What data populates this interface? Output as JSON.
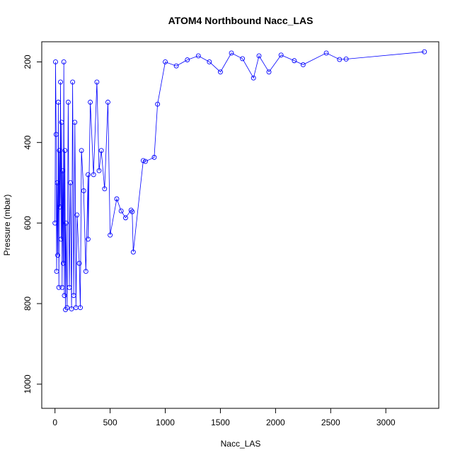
{
  "chart_data": {
    "type": "scatter",
    "title": "ATOM4 Northbound Nacc_LAS",
    "xlabel": "Nacc_LAS",
    "ylabel": "Pressure (mbar)",
    "xlim": [
      -120,
      3480
    ],
    "ylim": [
      1060,
      150
    ],
    "y_reversed": true,
    "x_ticks": [
      0,
      500,
      1000,
      1500,
      2000,
      2500,
      3000
    ],
    "y_ticks": [
      200,
      400,
      600,
      800,
      1000
    ],
    "grid": false,
    "marker": "open-circle",
    "connected": true,
    "color": "#0000ff",
    "series": [
      {
        "values": [
          [
            3350,
            175
          ],
          [
            2640,
            193
          ],
          [
            2580,
            194
          ],
          [
            2460,
            178
          ],
          [
            2250,
            207
          ],
          [
            2170,
            197
          ],
          [
            2050,
            183
          ],
          [
            1940,
            225
          ],
          [
            1850,
            185
          ],
          [
            1800,
            240
          ],
          [
            1700,
            192
          ],
          [
            1600,
            178
          ],
          [
            1500,
            225
          ],
          [
            1400,
            200
          ],
          [
            1300,
            185
          ],
          [
            1200,
            195
          ],
          [
            1100,
            210
          ],
          [
            1000,
            200
          ],
          [
            930,
            305
          ],
          [
            900,
            437
          ],
          [
            820,
            447
          ],
          [
            800,
            445
          ],
          [
            710,
            672
          ],
          [
            700,
            572
          ],
          [
            690,
            568
          ],
          [
            640,
            587
          ],
          [
            600,
            570
          ],
          [
            560,
            540
          ],
          [
            500,
            630
          ],
          [
            480,
            300
          ],
          [
            450,
            515
          ],
          [
            420,
            420
          ],
          [
            400,
            470
          ],
          [
            380,
            250
          ],
          [
            350,
            480
          ],
          [
            320,
            300
          ],
          [
            300,
            640
          ],
          [
            300,
            480
          ],
          [
            280,
            720
          ],
          [
            260,
            520
          ],
          [
            240,
            420
          ],
          [
            230,
            810
          ],
          [
            220,
            700
          ],
          [
            200,
            580
          ],
          [
            190,
            810
          ],
          [
            180,
            350
          ],
          [
            170,
            780
          ],
          [
            160,
            250
          ],
          [
            150,
            813
          ],
          [
            140,
            500
          ],
          [
            130,
            760
          ],
          [
            120,
            300
          ],
          [
            110,
            810
          ],
          [
            100,
            600
          ],
          [
            95,
            815
          ],
          [
            90,
            420
          ],
          [
            85,
            780
          ],
          [
            80,
            200
          ],
          [
            75,
            700
          ],
          [
            70,
            470
          ],
          [
            65,
            760
          ],
          [
            60,
            350
          ],
          [
            55,
            640
          ],
          [
            50,
            250
          ],
          [
            45,
            560
          ],
          [
            40,
            420
          ],
          [
            35,
            760
          ],
          [
            30,
            300
          ],
          [
            25,
            680
          ],
          [
            20,
            500
          ],
          [
            15,
            720
          ],
          [
            10,
            380
          ],
          [
            5,
            200
          ],
          [
            0,
            600
          ]
        ]
      }
    ]
  }
}
